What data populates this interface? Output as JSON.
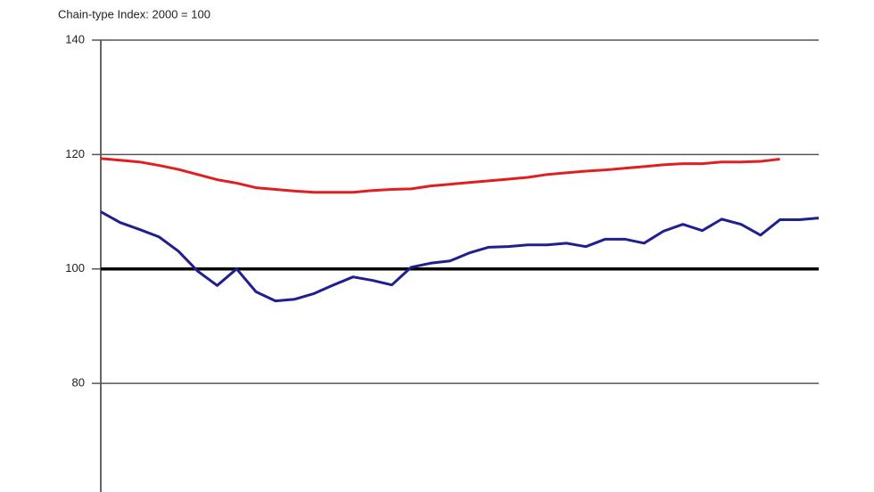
{
  "chart_data": {
    "type": "line",
    "subtitle": "Chain-type Index: 2000 = 100",
    "categories": [
      null,
      null,
      null,
      null,
      null,
      null,
      null,
      null,
      null,
      null,
      null,
      null,
      null,
      null,
      null,
      null,
      null,
      null,
      null,
      null,
      null,
      null,
      null,
      null,
      null,
      null,
      null,
      null,
      null,
      null,
      null,
      null,
      null,
      null,
      null,
      null,
      null,
      null
    ],
    "series": [
      {
        "color": "#e02020",
        "values": [
          119.3,
          119.0,
          118.7,
          118.1,
          117.4,
          116.5,
          115.6,
          115.0,
          114.2,
          113.9,
          113.6,
          113.4,
          113.4,
          113.4,
          113.7,
          113.9,
          114.0,
          114.5,
          114.8,
          115.1,
          115.4,
          115.7,
          116.0,
          116.5,
          116.8,
          117.1,
          117.3,
          117.6,
          117.9,
          118.2,
          118.4,
          118.4,
          118.7,
          118.7,
          118.8,
          119.2,
          null,
          null
        ]
      },
      {
        "color": "#1f1f8f",
        "values": [
          110.0,
          108.1,
          106.9,
          105.6,
          103.1,
          99.6,
          97.1,
          100.0,
          96.0,
          94.4,
          94.7,
          95.7,
          97.2,
          98.6,
          98.0,
          97.2,
          100.3,
          101.0,
          101.4,
          102.8,
          103.8,
          103.9,
          104.2,
          104.2,
          104.5,
          103.9,
          105.2,
          105.2,
          104.5,
          106.6,
          107.8,
          106.7,
          108.7,
          107.8,
          105.9,
          108.6,
          108.6,
          108.9
        ]
      }
    ],
    "ylim": [
      61,
      140
    ],
    "yticks": [
      80,
      100,
      120,
      140
    ],
    "grid": true,
    "hline": 100
  }
}
